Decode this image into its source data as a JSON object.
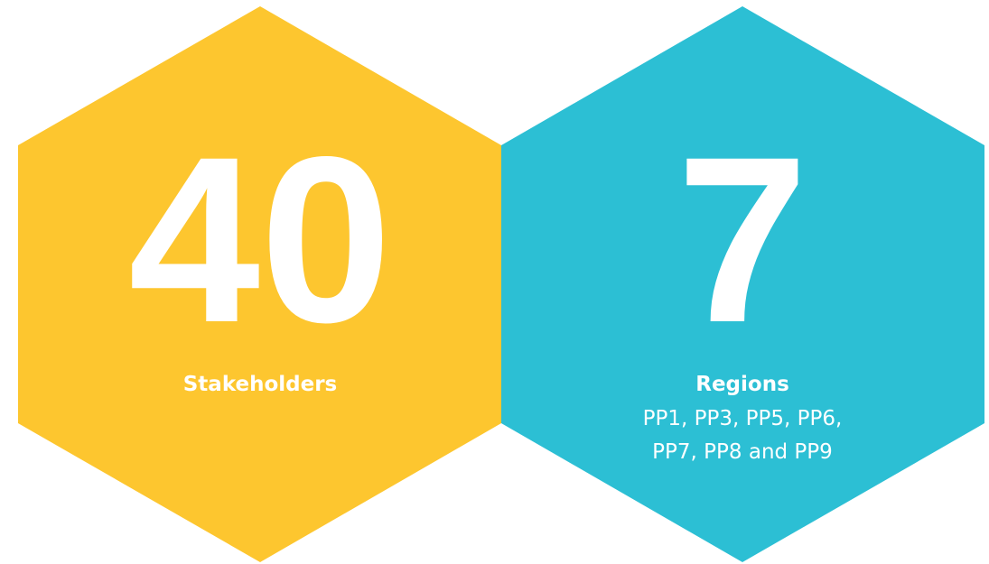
{
  "items": [
    {
      "value": 40,
      "label": "Stakeholders"
    },
    {
      "value": 7,
      "label": "Regions",
      "detail": [
        "PP1, PP3, PP5, PP6,",
        "PP7, PP8 and PP9"
      ]
    }
  ]
}
